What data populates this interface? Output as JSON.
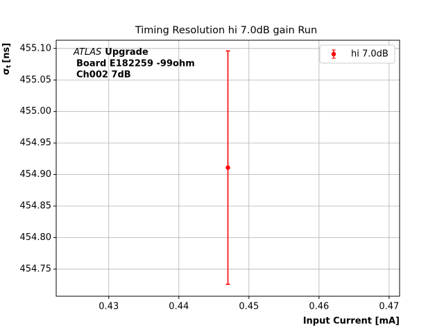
{
  "chart_data": {
    "type": "errorbar",
    "title": "Timing Resolution hi 7.0dB gain Run",
    "xlabel": "Input Current [mA]",
    "ylabel": {
      "symbol": "σ",
      "subscript": "t",
      "unit": "[ns]"
    },
    "annotation": {
      "italic": "ATLAS",
      "bold": "Upgrade",
      "lines": [
        "Board E182259 -99ohm",
        "Ch002 7dB"
      ]
    },
    "series": [
      {
        "name": "hi 7.0dB",
        "color": "#ff0000",
        "x": [
          0.447
        ],
        "values": [
          454.911
        ],
        "errors": [
          0.185
        ]
      }
    ],
    "xlim": [
      0.4225,
      0.4715
    ],
    "xticks": [
      0.43,
      0.44,
      0.45,
      0.46,
      0.47
    ],
    "ylim": [
      454.707,
      455.113
    ],
    "yticks": [
      454.75,
      {
        "value": 454.8,
        "label": "454.80"
      },
      454.85,
      {
        "value": 454.9,
        "label": "454.90"
      },
      454.95,
      {
        "value": 455.0,
        "label": "455.00"
      },
      455.05,
      {
        "value": 455.1,
        "label": "455.10"
      }
    ],
    "grid": true,
    "legend": "upper right"
  }
}
